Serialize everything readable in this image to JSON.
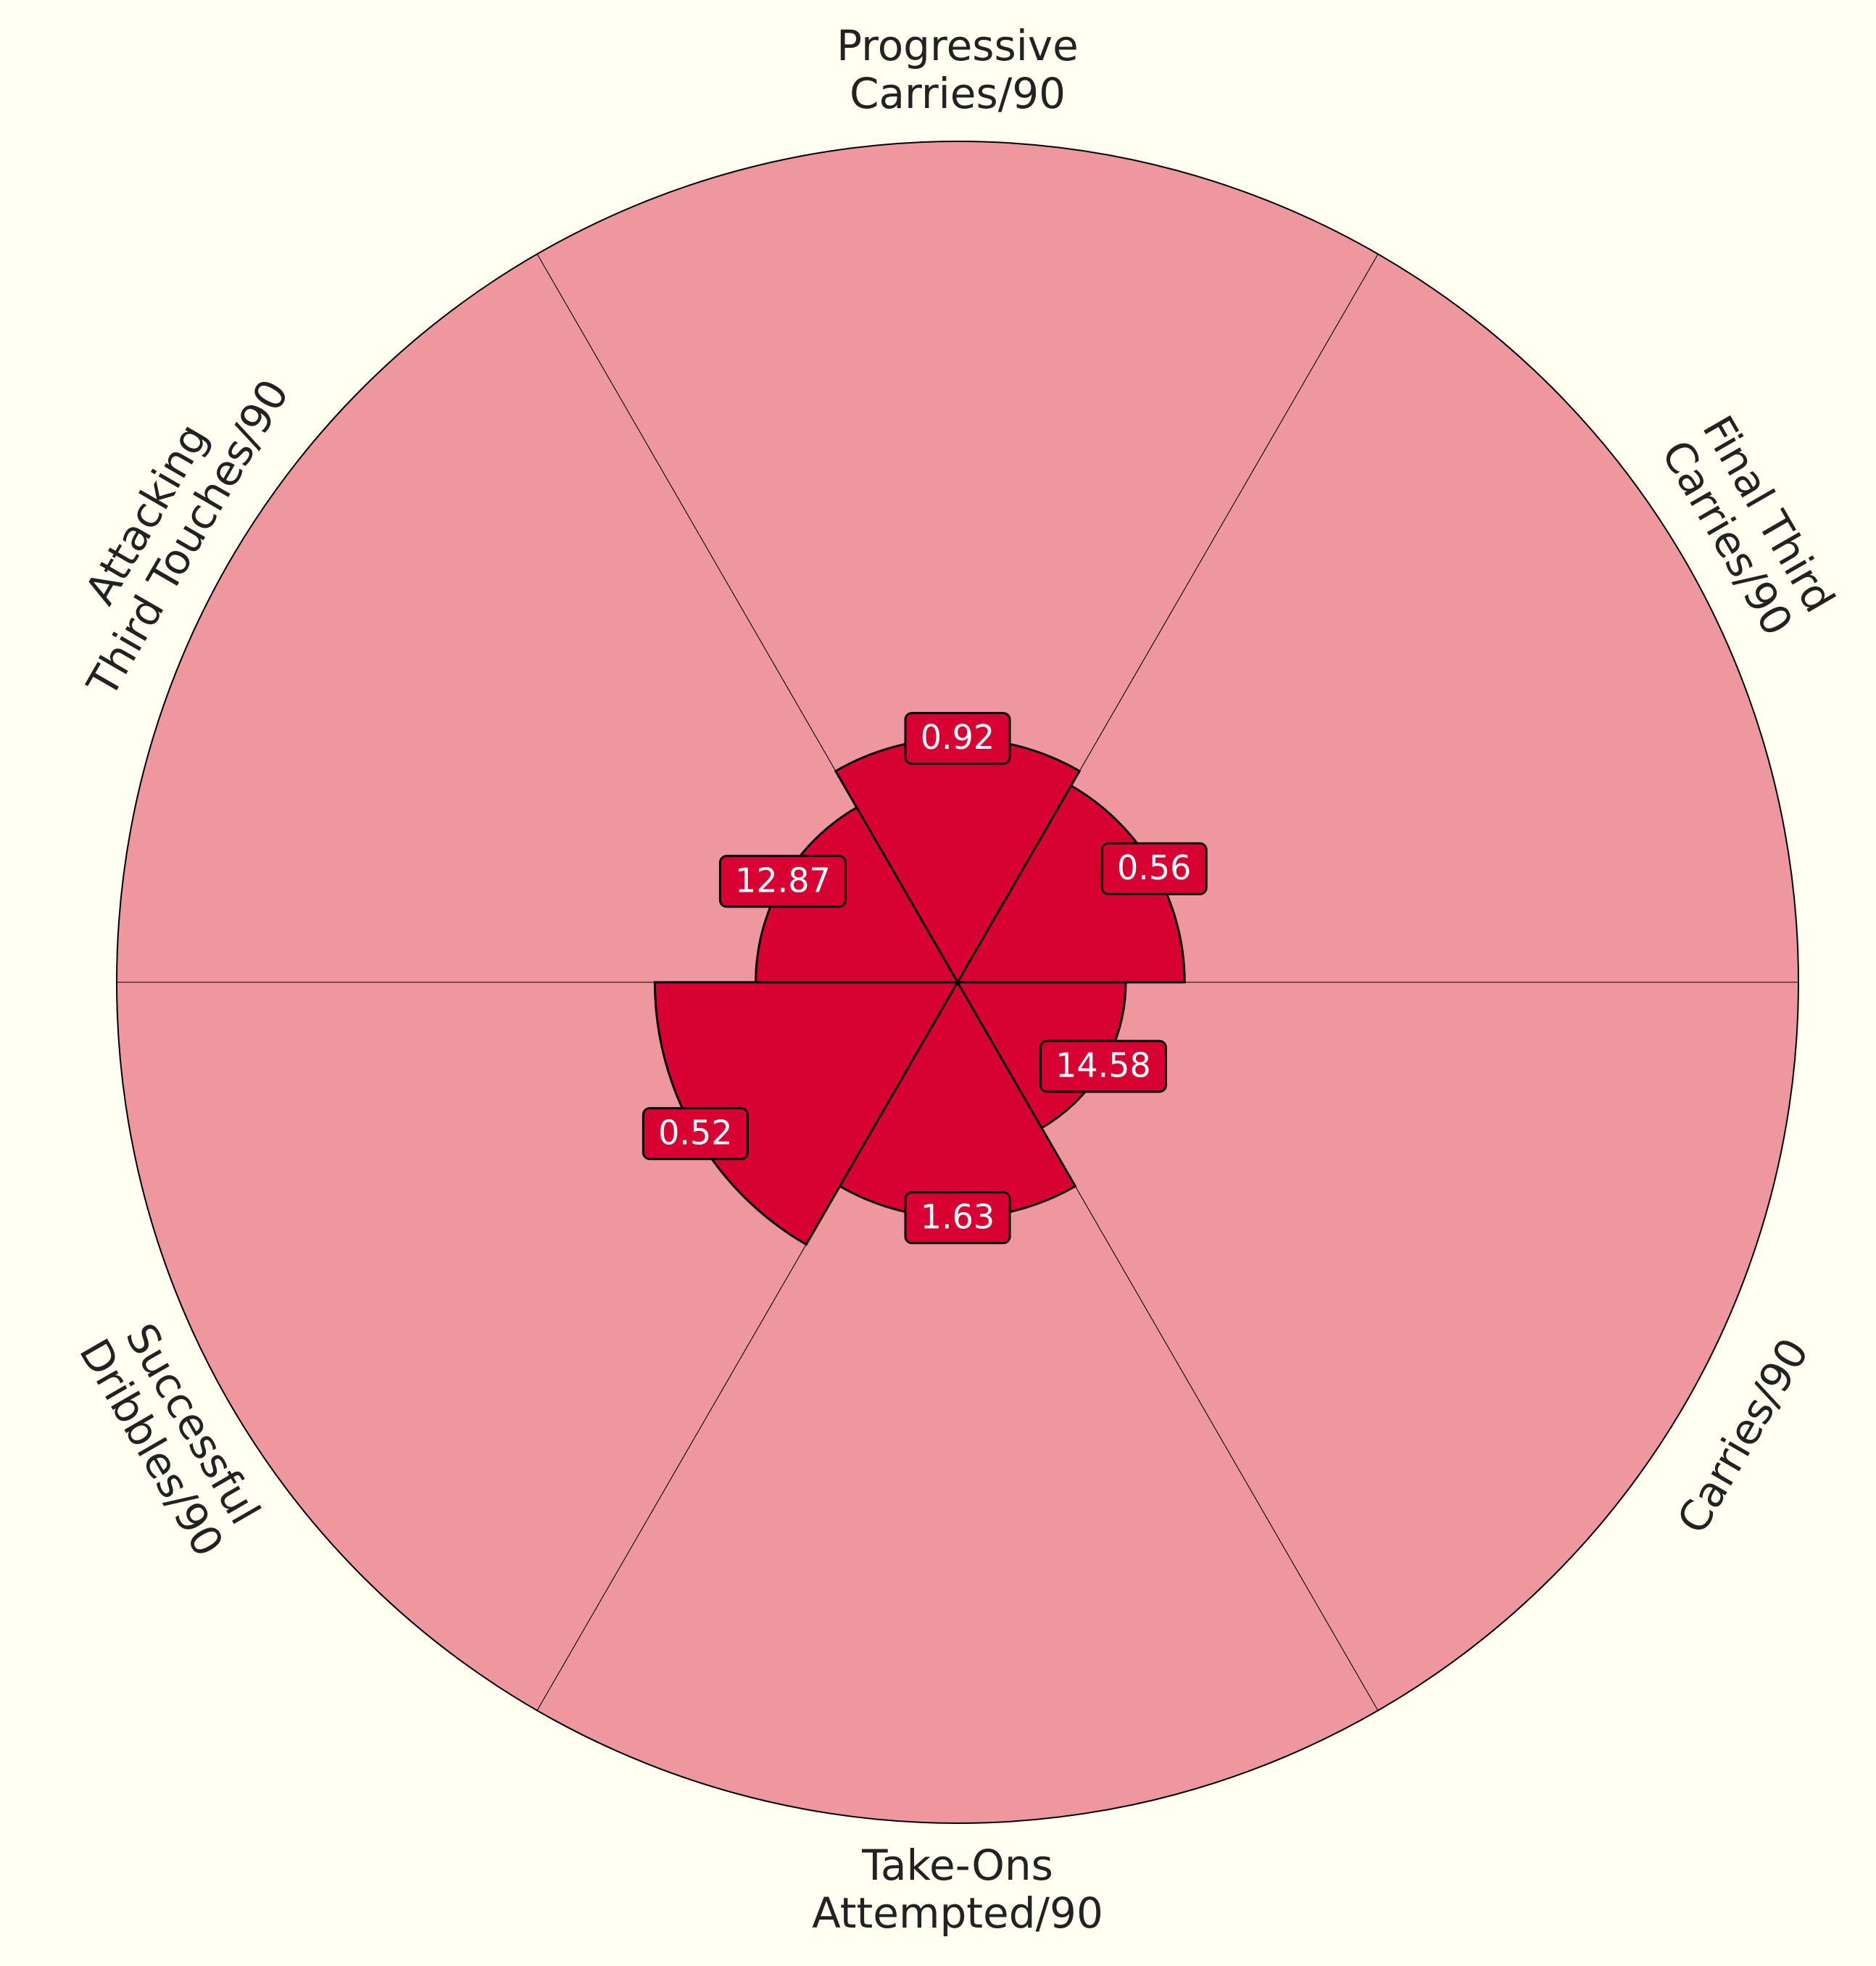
{
  "chart_data": {
    "type": "pizza",
    "start_angle_deg": 0,
    "direction": "counterclockwise",
    "colors": {
      "background": "#fffff2",
      "slice_background": "#ee979f",
      "slice_value": "#d70232",
      "label_box": "#d70232",
      "label_text": "#ffffff",
      "category_text": "#222222"
    },
    "categories": [
      {
        "label": [
          "Final Third",
          "Carries/90"
        ],
        "value_text": "0.56",
        "percentile": 27
      },
      {
        "label": [
          "Progressive",
          "Carries/90"
        ],
        "value_text": "0.92",
        "percentile": 29
      },
      {
        "label": [
          "Attacking",
          "Third Touches/90"
        ],
        "value_text": "12.87",
        "percentile": 24
      },
      {
        "label": [
          "Successful",
          "Dribbles/90"
        ],
        "value_text": "0.52",
        "percentile": 36
      },
      {
        "label": [
          "Take-Ons",
          "Attempted/90"
        ],
        "value_text": "1.63",
        "percentile": 28
      },
      {
        "label": [
          "Carries/90"
        ],
        "value_text": "14.58",
        "percentile": 20
      }
    ],
    "rmax": 100
  }
}
